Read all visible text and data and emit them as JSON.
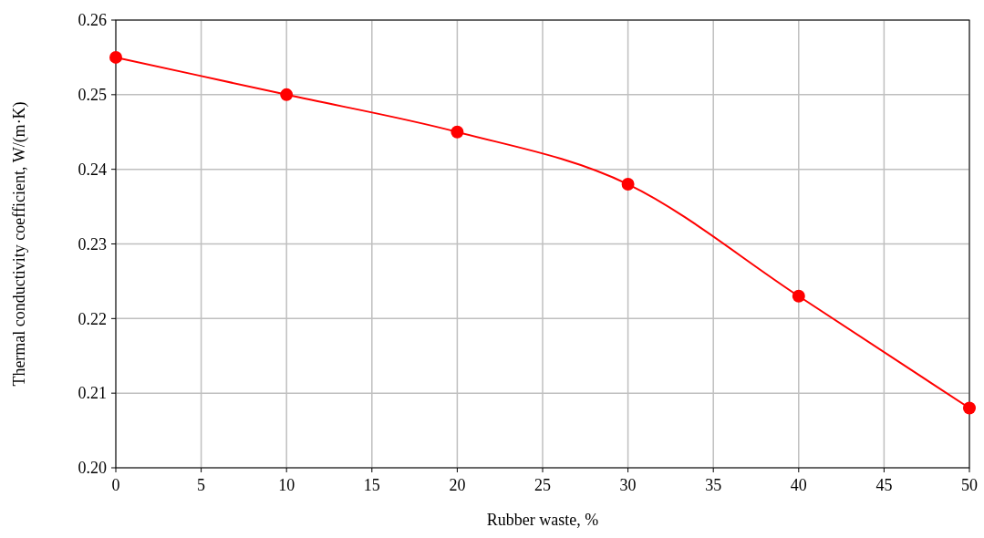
{
  "chart_data": {
    "type": "line",
    "xlabel": "Rubber waste, %",
    "ylabel": "Thermal conductivity coefficient, W/(m·K)",
    "x": [
      0,
      10,
      20,
      30,
      40,
      50
    ],
    "series": [
      {
        "color": "#ff0000",
        "values": [
          0.255,
          0.25,
          0.245,
          0.238,
          0.223,
          0.208
        ]
      }
    ],
    "xlim": [
      0,
      50
    ],
    "xticks": [
      0,
      5,
      10,
      15,
      20,
      25,
      30,
      35,
      40,
      45,
      50
    ],
    "ylim": [
      0.2,
      0.26
    ],
    "yticks": [
      {
        "value": 0.2,
        "label": "0.20"
      },
      {
        "value": 0.21,
        "label": "0.21"
      },
      {
        "value": 0.22,
        "label": "0.22"
      },
      {
        "value": 0.23,
        "label": "0.23"
      },
      {
        "value": 0.24,
        "label": "0.24"
      },
      {
        "value": 0.25,
        "label": "0.25"
      },
      {
        "value": 0.26,
        "label": "0.26"
      }
    ],
    "grid": true,
    "marker": "circle",
    "line_style": "solid"
  }
}
